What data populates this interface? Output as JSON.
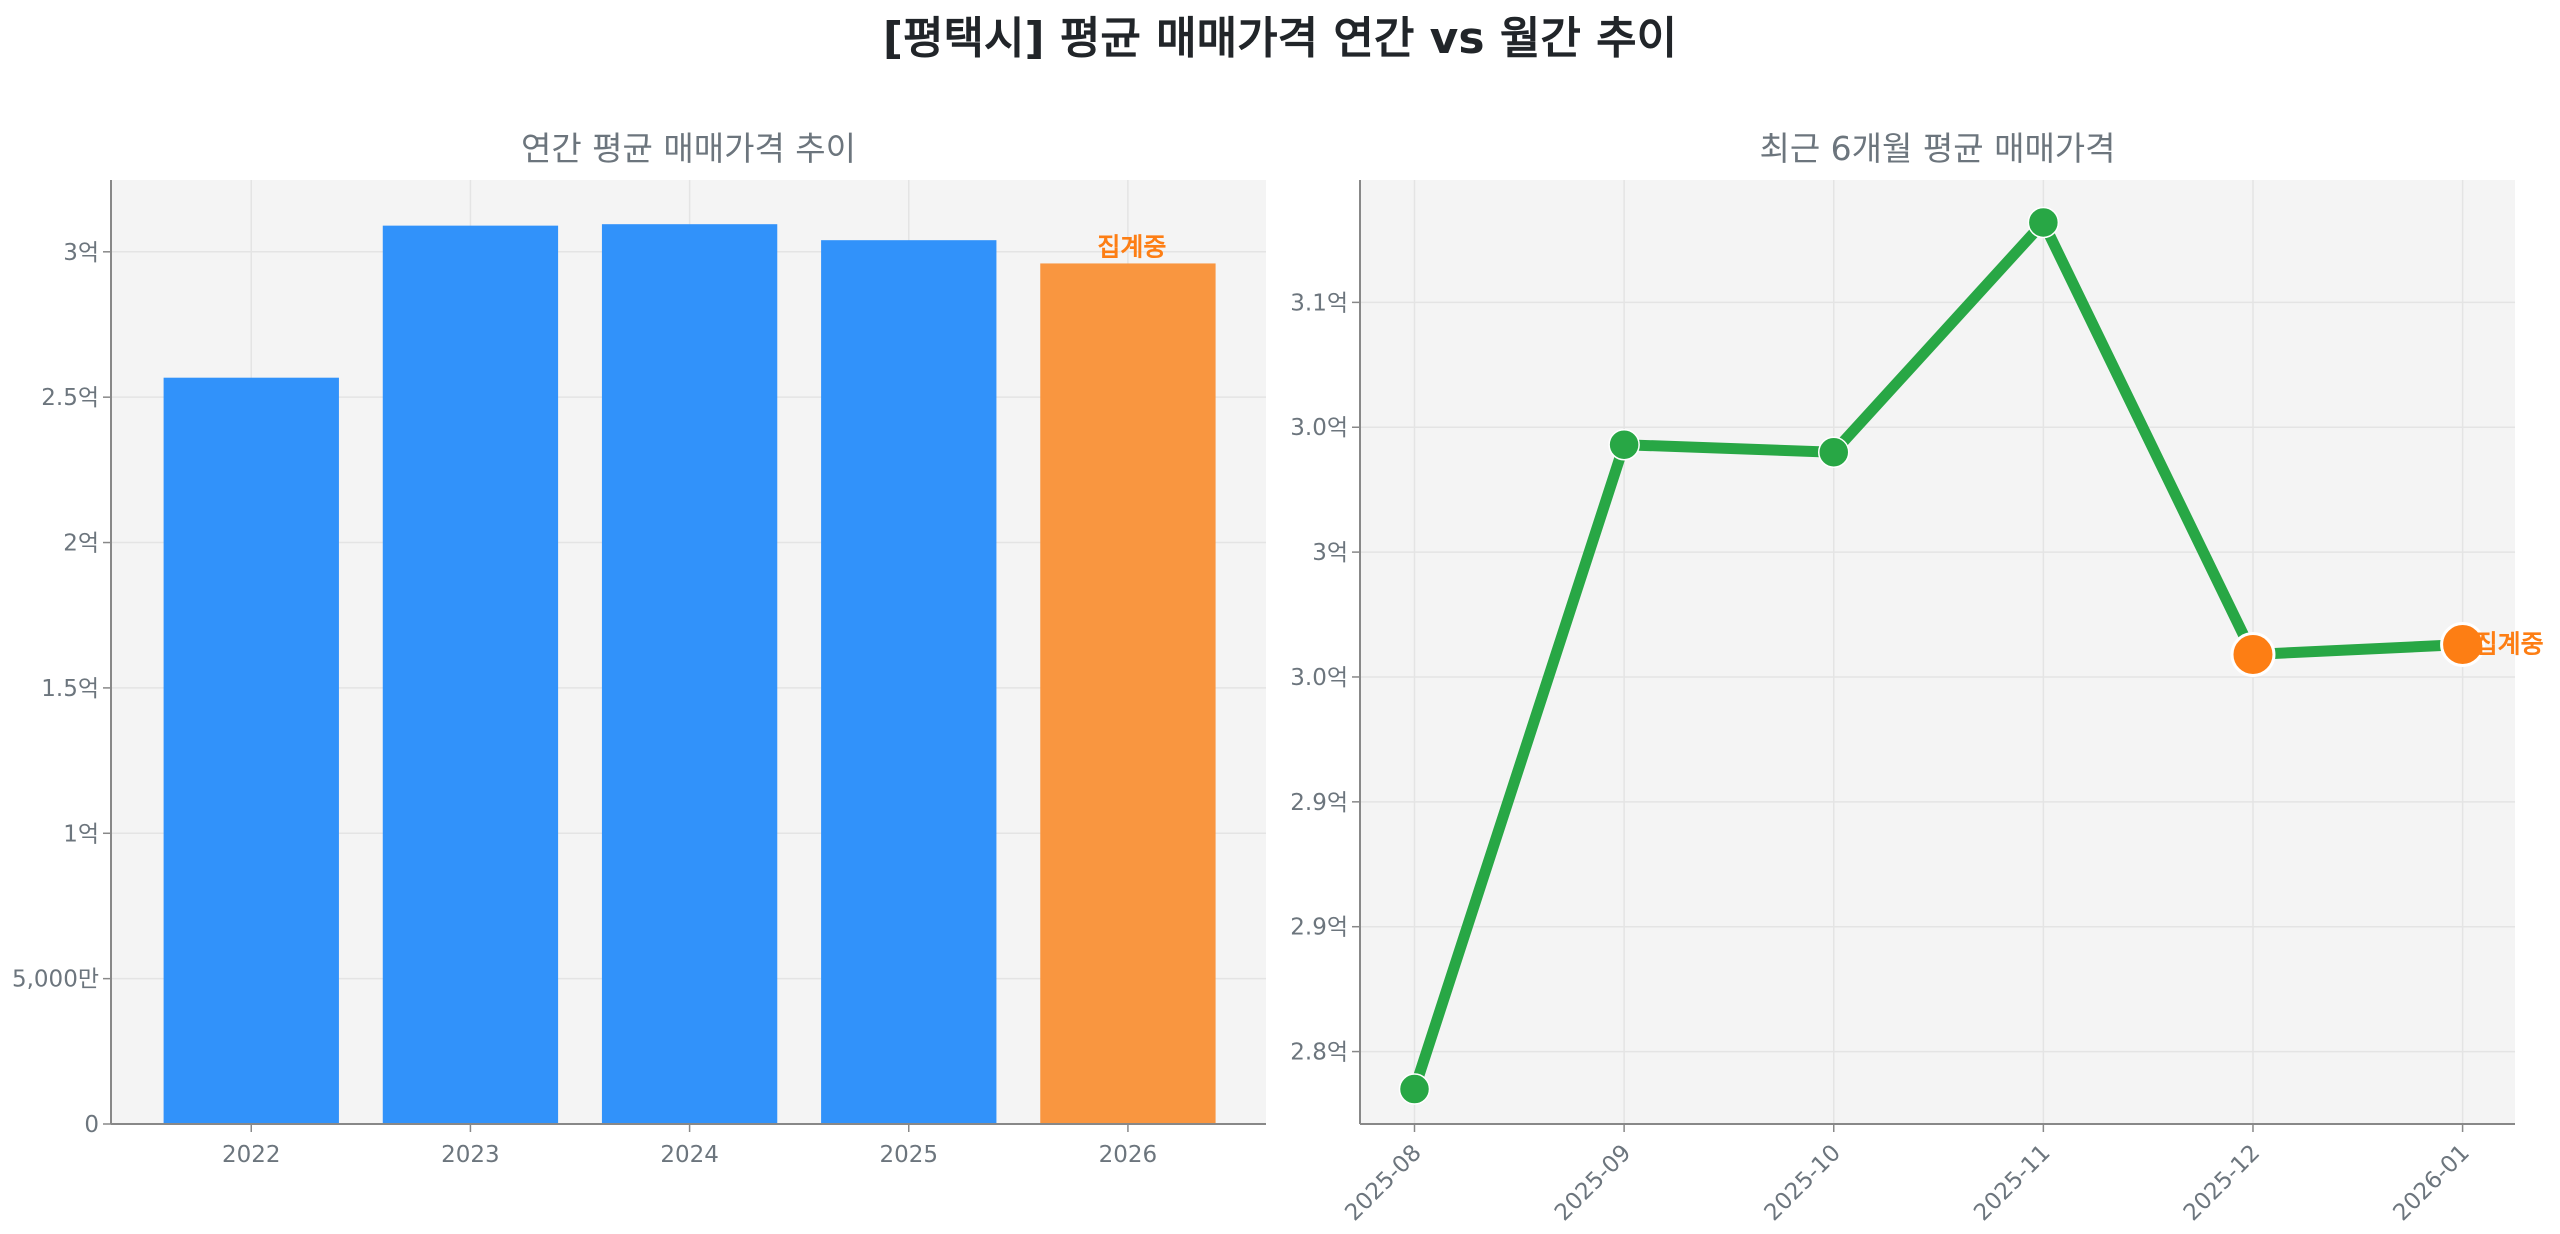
{
  "title": "[평택시] 평균 매매가격 연간 vs 월간 추이",
  "colors": {
    "bar": "#3192fa",
    "bar_partial": "#f99640",
    "line": "#28a745",
    "marker_partial": "#fd7e14",
    "annotation": "#fd7e14",
    "axes_bg": "#f4f4f4",
    "text": "#6c757d"
  },
  "chart_data": [
    {
      "type": "bar",
      "title": "연간 평균 매매가격 추이",
      "xlabel": "",
      "ylabel": "",
      "categories": [
        "2022",
        "2023",
        "2024",
        "2025",
        "2026"
      ],
      "values": [
        256700000,
        309000000,
        309500000,
        304000000,
        296000000
      ],
      "partial": [
        false,
        false,
        false,
        false,
        true
      ],
      "annotation": {
        "category": "2026",
        "text": "집계중"
      },
      "ylim": [
        0,
        324700000
      ],
      "yticks": [
        0,
        50000000,
        100000000,
        150000000,
        200000000,
        250000000,
        300000000
      ],
      "ytick_labels": [
        "0",
        "5,000만",
        "1억",
        "1.5억",
        "2억",
        "2.5억",
        "3억"
      ],
      "grid": true
    },
    {
      "type": "line",
      "title": "최근 6개월 평균 매매가격",
      "xlabel": "",
      "ylabel": "",
      "categories": [
        "2025-08",
        "2025-09",
        "2025-10",
        "2025-11",
        "2025-12",
        "2026-01"
      ],
      "values": [
        278500000,
        304300000,
        304000000,
        313200000,
        295900000,
        296300000
      ],
      "partial": [
        false,
        false,
        false,
        false,
        true,
        true
      ],
      "annotation": {
        "category": "2026-01",
        "text": "집계중"
      },
      "ylim": [
        277100000,
        314900000
      ],
      "yticks": [
        280000000,
        285000000,
        290000000,
        295000000,
        300000000,
        305000000,
        310000000
      ],
      "ytick_labels": [
        "2.8억",
        "2.9억",
        "2.9억",
        "3.0억",
        "3억",
        "3.0억",
        "3.1억"
      ],
      "grid": true
    }
  ]
}
